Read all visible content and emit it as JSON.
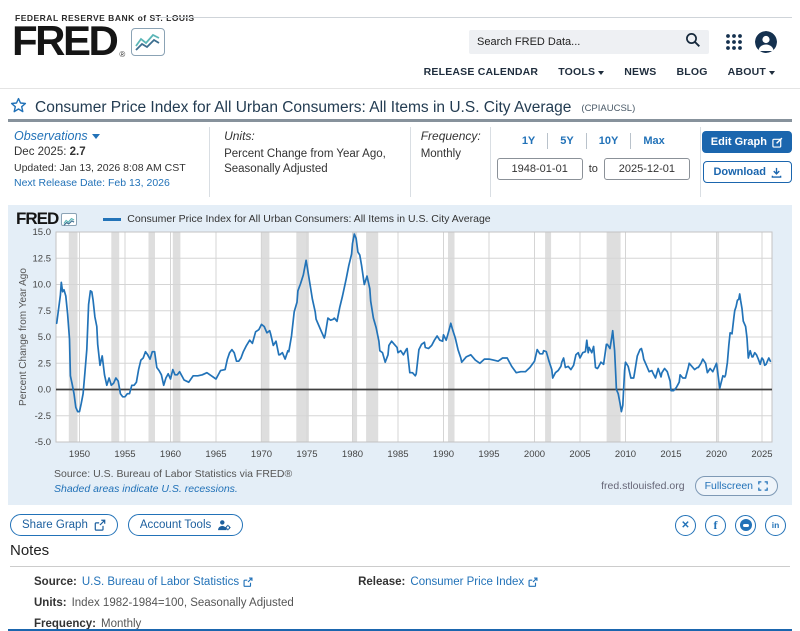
{
  "header": {
    "bank_label": "FEDERAL RESERVE BANK of ST. LOUIS",
    "logo_word": "FRED",
    "logo_reg": "®",
    "search_placeholder": "Search FRED Data...",
    "nav": [
      {
        "label": "RELEASE CALENDAR"
      },
      {
        "label": "TOOLS"
      },
      {
        "label": "NEWS"
      },
      {
        "label": "BLOG"
      },
      {
        "label": "ABOUT"
      }
    ]
  },
  "series_header": {
    "title": "Consumer Price Index for All Urban Consumers: All Items in U.S. City Average",
    "series_id": "(CPIAUCSL)"
  },
  "meta": {
    "observations": {
      "label": "Observations",
      "latest_label": "Dec 2025:",
      "latest_value": "2.7",
      "updated": "Updated: Jan 13, 2026 8:08 AM CST",
      "next_release": "Next Release Date: Feb 13, 2026"
    },
    "units": {
      "label": "Units:",
      "line1": "Percent Change from Year Ago,",
      "line2": "Seasonally Adjusted"
    },
    "frequency": {
      "label": "Frequency:",
      "value": "Monthly"
    },
    "ranges": [
      "1Y",
      "5Y",
      "10Y",
      "Max"
    ],
    "date_from": "1948-01-01",
    "to_label": "to",
    "date_to": "2025-12-01",
    "edit_graph_label": "Edit Graph",
    "download_label": "Download"
  },
  "chart": {
    "brand": "FRED",
    "legend": "Consumer Price Index for All Urban Consumers: All Items in U.S. City Average",
    "source_line": "Source: U.S. Bureau of Labor Statistics via FRED®",
    "recession_note": "Shaded areas indicate U.S. recessions.",
    "site": "fred.stlouisfed.org",
    "fullscreen_label": "Fullscreen"
  },
  "chart_data": {
    "type": "line",
    "title": "Consumer Price Index for All Urban Consumers: All Items in U.S. City Average",
    "ylabel": "Percent Change from Year Ago",
    "xlabel": "",
    "xlim": [
      1947.42,
      2026.1
    ],
    "ylim": [
      -5,
      15
    ],
    "x_ticks": [
      1950,
      1955,
      1960,
      1965,
      1970,
      1975,
      1980,
      1985,
      1990,
      1995,
      2000,
      2005,
      2010,
      2015,
      2020,
      2025
    ],
    "y_ticks": [
      15,
      12.5,
      10,
      7.5,
      5,
      2.5,
      0,
      -2.5,
      -5
    ],
    "line_color": "#2273b8",
    "recession_color": "#dedede",
    "grid": true,
    "legend_position": "top",
    "recessions": [
      [
        1948.83,
        1949.79
      ],
      [
        1953.5,
        1954.37
      ],
      [
        1957.58,
        1958.29
      ],
      [
        1960.25,
        1961.08
      ],
      [
        1969.92,
        1970.87
      ],
      [
        1973.83,
        1975.21
      ],
      [
        1980.0,
        1980.5
      ],
      [
        1981.5,
        1982.83
      ],
      [
        1990.5,
        1991.21
      ],
      [
        2001.17,
        2001.83
      ],
      [
        2007.92,
        2009.46
      ],
      [
        2020.08,
        2020.29
      ]
    ],
    "points": [
      [
        1947.5,
        6.3
      ],
      [
        1947.7,
        7.6
      ],
      [
        1947.9,
        9.0
      ],
      [
        1948.0,
        10.2
      ],
      [
        1948.15,
        9.3
      ],
      [
        1948.3,
        9.5
      ],
      [
        1948.5,
        8.9
      ],
      [
        1948.7,
        7.2
      ],
      [
        1948.9,
        4.8
      ],
      [
        1949.0,
        1.3
      ],
      [
        1949.2,
        0.5
      ],
      [
        1949.4,
        -0.4
      ],
      [
        1949.6,
        -1.7
      ],
      [
        1949.8,
        -2.1
      ],
      [
        1950.0,
        -2.1
      ],
      [
        1950.2,
        -1.3
      ],
      [
        1950.4,
        -0.4
      ],
      [
        1950.6,
        1.6
      ],
      [
        1950.8,
        3.8
      ],
      [
        1951.0,
        8.1
      ],
      [
        1951.2,
        9.4
      ],
      [
        1951.35,
        9.3
      ],
      [
        1951.5,
        8.5
      ],
      [
        1951.7,
        6.9
      ],
      [
        1951.9,
        6.0
      ],
      [
        1952.0,
        4.3
      ],
      [
        1952.25,
        2.3
      ],
      [
        1952.5,
        3.2
      ],
      [
        1952.75,
        1.4
      ],
      [
        1953.0,
        0.4
      ],
      [
        1953.25,
        1.1
      ],
      [
        1953.5,
        0.4
      ],
      [
        1953.75,
        0.6
      ],
      [
        1954.0,
        1.1
      ],
      [
        1954.25,
        0.8
      ],
      [
        1954.5,
        -0.4
      ],
      [
        1954.75,
        -0.7
      ],
      [
        1955.0,
        -0.7
      ],
      [
        1955.25,
        -0.4
      ],
      [
        1955.5,
        -0.4
      ],
      [
        1955.75,
        0.4
      ],
      [
        1956.0,
        0.4
      ],
      [
        1956.25,
        0.7
      ],
      [
        1956.5,
        1.9
      ],
      [
        1956.75,
        2.8
      ],
      [
        1957.0,
        3.0
      ],
      [
        1957.25,
        3.6
      ],
      [
        1957.5,
        3.3
      ],
      [
        1957.75,
        2.9
      ],
      [
        1958.0,
        3.6
      ],
      [
        1958.25,
        3.6
      ],
      [
        1958.5,
        2.1
      ],
      [
        1958.75,
        1.8
      ],
      [
        1959.0,
        1.4
      ],
      [
        1959.25,
        0.4
      ],
      [
        1959.5,
        1.1
      ],
      [
        1959.75,
        1.5
      ],
      [
        1960.0,
        1.0
      ],
      [
        1960.25,
        1.9
      ],
      [
        1960.5,
        1.4
      ],
      [
        1960.75,
        1.4
      ],
      [
        1961.0,
        1.7
      ],
      [
        1961.5,
        0.9
      ],
      [
        1962.0,
        0.7
      ],
      [
        1962.5,
        1.3
      ],
      [
        1963.0,
        1.3
      ],
      [
        1963.5,
        1.4
      ],
      [
        1964.0,
        1.6
      ],
      [
        1964.5,
        1.3
      ],
      [
        1965.0,
        1.0
      ],
      [
        1965.5,
        1.8
      ],
      [
        1966.0,
        1.9
      ],
      [
        1966.25,
        2.9
      ],
      [
        1966.5,
        3.5
      ],
      [
        1966.75,
        3.8
      ],
      [
        1967.0,
        3.5
      ],
      [
        1967.25,
        2.7
      ],
      [
        1967.5,
        2.7
      ],
      [
        1967.75,
        3.0
      ],
      [
        1968.0,
        3.6
      ],
      [
        1968.35,
        4.2
      ],
      [
        1968.7,
        4.7
      ],
      [
        1969.0,
        4.4
      ],
      [
        1969.35,
        5.5
      ],
      [
        1969.7,
        5.7
      ],
      [
        1970.0,
        6.2
      ],
      [
        1970.3,
        6.0
      ],
      [
        1970.6,
        5.4
      ],
      [
        1970.9,
        5.6
      ],
      [
        1971.0,
        5.3
      ],
      [
        1971.3,
        4.2
      ],
      [
        1971.6,
        4.6
      ],
      [
        1971.9,
        3.3
      ],
      [
        1972.0,
        3.3
      ],
      [
        1972.3,
        3.5
      ],
      [
        1972.6,
        2.9
      ],
      [
        1972.9,
        3.7
      ],
      [
        1973.0,
        3.6
      ],
      [
        1973.3,
        5.1
      ],
      [
        1973.6,
        7.4
      ],
      [
        1973.9,
        8.3
      ],
      [
        1974.0,
        9.4
      ],
      [
        1974.3,
        10.1
      ],
      [
        1974.6,
        10.9
      ],
      [
        1974.9,
        12.3
      ],
      [
        1975.0,
        11.8
      ],
      [
        1975.3,
        10.2
      ],
      [
        1975.6,
        8.6
      ],
      [
        1975.9,
        7.4
      ],
      [
        1976.0,
        6.7
      ],
      [
        1976.3,
        6.1
      ],
      [
        1976.6,
        5.5
      ],
      [
        1976.9,
        4.9
      ],
      [
        1977.0,
        5.2
      ],
      [
        1977.3,
        6.8
      ],
      [
        1977.6,
        6.6
      ],
      [
        1977.9,
        6.7
      ],
      [
        1978.0,
        6.8
      ],
      [
        1978.3,
        6.5
      ],
      [
        1978.6,
        7.8
      ],
      [
        1978.9,
        8.9
      ],
      [
        1979.0,
        9.3
      ],
      [
        1979.3,
        10.5
      ],
      [
        1979.6,
        11.8
      ],
      [
        1979.9,
        12.9
      ],
      [
        1980.0,
        13.9
      ],
      [
        1980.2,
        14.8
      ],
      [
        1980.4,
        14.4
      ],
      [
        1980.6,
        13.1
      ],
      [
        1980.8,
        12.8
      ],
      [
        1981.0,
        11.8
      ],
      [
        1981.3,
        10.0
      ],
      [
        1981.6,
        10.8
      ],
      [
        1981.9,
        9.6
      ],
      [
        1982.0,
        8.4
      ],
      [
        1982.3,
        6.8
      ],
      [
        1982.6,
        5.9
      ],
      [
        1982.9,
        4.6
      ],
      [
        1983.0,
        3.7
      ],
      [
        1983.3,
        3.5
      ],
      [
        1983.6,
        2.6
      ],
      [
        1983.9,
        3.3
      ],
      [
        1984.0,
        4.2
      ],
      [
        1984.3,
        4.6
      ],
      [
        1984.6,
        4.3
      ],
      [
        1984.9,
        4.0
      ],
      [
        1985.0,
        3.5
      ],
      [
        1985.3,
        3.7
      ],
      [
        1985.6,
        3.3
      ],
      [
        1985.9,
        3.8
      ],
      [
        1986.0,
        3.9
      ],
      [
        1986.3,
        1.6
      ],
      [
        1986.6,
        1.6
      ],
      [
        1986.9,
        1.3
      ],
      [
        1987.0,
        1.5
      ],
      [
        1987.3,
        3.8
      ],
      [
        1987.6,
        4.3
      ],
      [
        1987.9,
        4.5
      ],
      [
        1988.0,
        4.0
      ],
      [
        1988.35,
        3.9
      ],
      [
        1988.7,
        4.2
      ],
      [
        1989.0,
        4.7
      ],
      [
        1989.3,
        5.1
      ],
      [
        1989.6,
        4.7
      ],
      [
        1989.9,
        4.6
      ],
      [
        1990.0,
        5.2
      ],
      [
        1990.3,
        4.7
      ],
      [
        1990.6,
        5.6
      ],
      [
        1990.8,
        6.3
      ],
      [
        1991.0,
        5.7
      ],
      [
        1991.3,
        4.9
      ],
      [
        1991.6,
        3.8
      ],
      [
        1991.9,
        3.0
      ],
      [
        1992.0,
        2.6
      ],
      [
        1992.5,
        3.1
      ],
      [
        1993.0,
        3.3
      ],
      [
        1993.5,
        2.8
      ],
      [
        1994.0,
        2.5
      ],
      [
        1994.5,
        2.9
      ],
      [
        1995.0,
        2.9
      ],
      [
        1995.5,
        2.8
      ],
      [
        1996.0,
        2.7
      ],
      [
        1996.5,
        3.0
      ],
      [
        1997.0,
        3.0
      ],
      [
        1997.5,
        2.2
      ],
      [
        1998.0,
        1.6
      ],
      [
        1998.5,
        1.7
      ],
      [
        1999.0,
        1.7
      ],
      [
        1999.5,
        2.1
      ],
      [
        2000.0,
        2.7
      ],
      [
        2000.3,
        3.8
      ],
      [
        2000.6,
        3.4
      ],
      [
        2000.9,
        3.4
      ],
      [
        2001.0,
        3.7
      ],
      [
        2001.3,
        3.6
      ],
      [
        2001.6,
        2.7
      ],
      [
        2001.9,
        1.9
      ],
      [
        2002.0,
        1.1
      ],
      [
        2002.3,
        1.6
      ],
      [
        2002.6,
        1.8
      ],
      [
        2002.9,
        2.2
      ],
      [
        2003.0,
        2.6
      ],
      [
        2003.2,
        3.0
      ],
      [
        2003.4,
        2.1
      ],
      [
        2003.7,
        2.2
      ],
      [
        2004.0,
        1.9
      ],
      [
        2004.3,
        2.3
      ],
      [
        2004.55,
        3.3
      ],
      [
        2004.8,
        3.5
      ],
      [
        2005.0,
        3.0
      ],
      [
        2005.3,
        3.5
      ],
      [
        2005.6,
        3.6
      ],
      [
        2005.75,
        4.7
      ],
      [
        2005.9,
        3.5
      ],
      [
        2006.0,
        4.0
      ],
      [
        2006.3,
        3.5
      ],
      [
        2006.5,
        4.1
      ],
      [
        2006.7,
        2.1
      ],
      [
        2006.9,
        2.0
      ],
      [
        2007.0,
        2.1
      ],
      [
        2007.3,
        2.6
      ],
      [
        2007.6,
        2.4
      ],
      [
        2007.9,
        4.3
      ],
      [
        2008.0,
        4.3
      ],
      [
        2008.3,
        3.9
      ],
      [
        2008.5,
        5.0
      ],
      [
        2008.6,
        5.6
      ],
      [
        2008.8,
        3.7
      ],
      [
        2008.95,
        1.1
      ],
      [
        2009.0,
        0.0
      ],
      [
        2009.2,
        -0.4
      ],
      [
        2009.4,
        -1.3
      ],
      [
        2009.55,
        -2.1
      ],
      [
        2009.7,
        -1.5
      ],
      [
        2009.9,
        1.8
      ],
      [
        2010.0,
        2.6
      ],
      [
        2010.3,
        2.2
      ],
      [
        2010.6,
        1.1
      ],
      [
        2010.9,
        1.1
      ],
      [
        2011.0,
        1.6
      ],
      [
        2011.3,
        3.2
      ],
      [
        2011.6,
        3.8
      ],
      [
        2011.75,
        3.9
      ],
      [
        2011.9,
        3.4
      ],
      [
        2012.0,
        2.9
      ],
      [
        2012.3,
        2.3
      ],
      [
        2012.6,
        1.7
      ],
      [
        2012.9,
        1.8
      ],
      [
        2013.0,
        1.6
      ],
      [
        2013.3,
        1.1
      ],
      [
        2013.6,
        2.0
      ],
      [
        2013.9,
        1.2
      ],
      [
        2014.0,
        1.6
      ],
      [
        2014.3,
        2.0
      ],
      [
        2014.6,
        1.7
      ],
      [
        2014.9,
        0.8
      ],
      [
        2015.0,
        -0.1
      ],
      [
        2015.3,
        -0.1
      ],
      [
        2015.6,
        0.2
      ],
      [
        2015.9,
        0.7
      ],
      [
        2016.0,
        1.4
      ],
      [
        2016.3,
        1.1
      ],
      [
        2016.6,
        1.1
      ],
      [
        2016.9,
        2.1
      ],
      [
        2017.0,
        2.5
      ],
      [
        2017.3,
        2.2
      ],
      [
        2017.6,
        1.9
      ],
      [
        2017.9,
        2.1
      ],
      [
        2018.0,
        2.1
      ],
      [
        2018.3,
        2.5
      ],
      [
        2018.5,
        2.9
      ],
      [
        2018.8,
        2.5
      ],
      [
        2019.0,
        1.6
      ],
      [
        2019.3,
        2.0
      ],
      [
        2019.6,
        1.7
      ],
      [
        2019.9,
        2.3
      ],
      [
        2020.0,
        2.5
      ],
      [
        2020.15,
        1.5
      ],
      [
        2020.35,
        0.1
      ],
      [
        2020.5,
        0.6
      ],
      [
        2020.7,
        1.3
      ],
      [
        2020.9,
        1.2
      ],
      [
        2021.0,
        1.4
      ],
      [
        2021.2,
        2.6
      ],
      [
        2021.35,
        4.2
      ],
      [
        2021.5,
        5.4
      ],
      [
        2021.7,
        5.3
      ],
      [
        2021.9,
        6.8
      ],
      [
        2022.0,
        7.5
      ],
      [
        2022.15,
        7.9
      ],
      [
        2022.3,
        8.5
      ],
      [
        2022.45,
        8.6
      ],
      [
        2022.55,
        9.1
      ],
      [
        2022.65,
        8.5
      ],
      [
        2022.8,
        7.7
      ],
      [
        2022.95,
        6.5
      ],
      [
        2023.0,
        6.4
      ],
      [
        2023.2,
        6.0
      ],
      [
        2023.35,
        4.9
      ],
      [
        2023.5,
        3.0
      ],
      [
        2023.7,
        3.7
      ],
      [
        2023.9,
        3.1
      ],
      [
        2024.0,
        3.1
      ],
      [
        2024.2,
        3.5
      ],
      [
        2024.4,
        3.3
      ],
      [
        2024.6,
        2.9
      ],
      [
        2024.8,
        2.4
      ],
      [
        2024.95,
        2.9
      ],
      [
        2025.0,
        3.0
      ],
      [
        2025.15,
        2.8
      ],
      [
        2025.3,
        2.3
      ],
      [
        2025.45,
        2.4
      ],
      [
        2025.6,
        2.7
      ],
      [
        2025.75,
        3.0
      ],
      [
        2025.92,
        2.7
      ]
    ]
  },
  "actions": {
    "share_label": "Share Graph",
    "account_tools_label": "Account Tools",
    "social": [
      "x",
      "facebook",
      "reddit",
      "linkedin"
    ]
  },
  "notes": {
    "heading": "Notes",
    "source_label": "Source:",
    "source_link": "U.S. Bureau of Labor Statistics",
    "release_label": "Release:",
    "release_link": "Consumer Price Index",
    "units_label": "Units:",
    "units_value": "Index 1982-1984=100, Seasonally Adjusted",
    "frequency_label": "Frequency:",
    "frequency_value": "Monthly"
  }
}
